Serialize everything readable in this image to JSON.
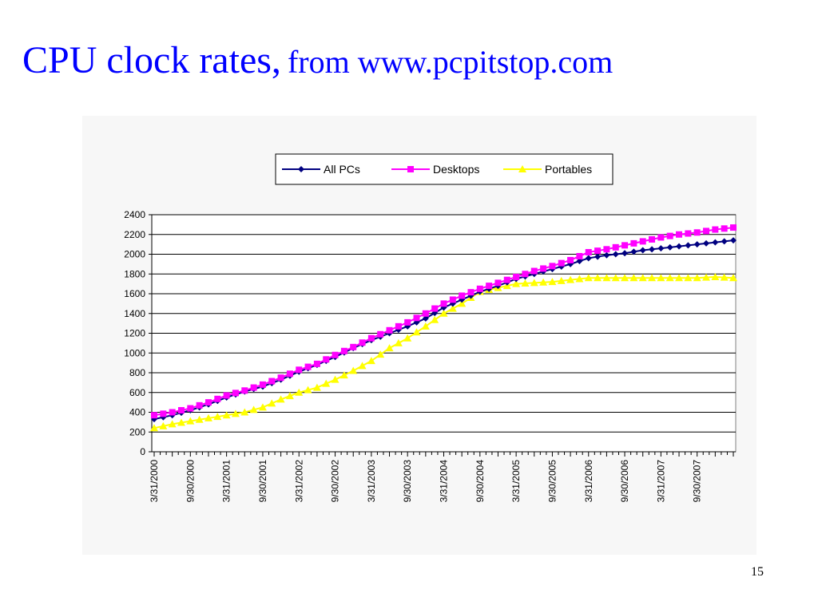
{
  "slide": {
    "title_main": "CPU clock rates,",
    "title_source": "from www.pcpitstop.com",
    "page_number": "15"
  },
  "chart_data": {
    "type": "line",
    "title": "",
    "xlabel": "",
    "ylabel": "",
    "ylim": [
      0,
      2400
    ],
    "yticks": [
      0,
      200,
      400,
      600,
      800,
      1000,
      1200,
      1400,
      1600,
      1800,
      2000,
      2200,
      2400
    ],
    "x_tick_labels": [
      "3/31/2000",
      "9/30/2000",
      "3/31/2001",
      "9/30/2001",
      "3/31/2002",
      "9/30/2002",
      "3/31/2003",
      "9/30/2003",
      "3/31/2004",
      "9/30/2004",
      "3/31/2005",
      "9/30/2005",
      "3/31/2006",
      "9/30/2006",
      "3/31/2007",
      "9/30/2007"
    ],
    "grid": "horizontal",
    "legend_position": "top-center",
    "x": [
      "3/31/2000",
      "6/30/2000",
      "9/30/2000",
      "12/31/2000",
      "3/31/2001",
      "6/30/2001",
      "9/30/2001",
      "12/31/2001",
      "3/31/2002",
      "6/30/2002",
      "9/30/2002",
      "12/31/2002",
      "3/31/2003",
      "6/30/2003",
      "9/30/2003",
      "12/31/2003",
      "3/31/2004",
      "6/30/2004",
      "9/30/2004",
      "12/31/2004",
      "3/31/2005",
      "6/30/2005",
      "9/30/2005",
      "12/31/2005",
      "3/31/2006",
      "6/30/2006",
      "9/30/2006",
      "12/31/2006",
      "3/31/2007",
      "6/30/2007",
      "9/30/2007",
      "12/31/2007",
      "3/31/2008"
    ],
    "series": [
      {
        "name": "All PCs",
        "color": "#000080",
        "marker": "diamond",
        "values": [
          330,
          370,
          420,
          480,
          550,
          610,
          660,
          730,
          810,
          880,
          960,
          1050,
          1130,
          1200,
          1270,
          1350,
          1460,
          1540,
          1620,
          1680,
          1750,
          1800,
          1850,
          1900,
          1960,
          1990,
          2010,
          2040,
          2060,
          2080,
          2100,
          2120,
          2140
        ]
      },
      {
        "name": "Desktops",
        "color": "#ff00ff",
        "marker": "square",
        "values": [
          370,
          400,
          440,
          500,
          570,
          620,
          680,
          750,
          830,
          890,
          980,
          1060,
          1150,
          1230,
          1310,
          1400,
          1500,
          1580,
          1650,
          1710,
          1770,
          1830,
          1880,
          1940,
          2020,
          2050,
          2090,
          2130,
          2170,
          2200,
          2220,
          2250,
          2270
        ]
      },
      {
        "name": "Portables",
        "color": "#ffff00",
        "marker": "triangle",
        "values": [
          240,
          280,
          310,
          340,
          370,
          400,
          450,
          530,
          600,
          650,
          730,
          820,
          920,
          1050,
          1150,
          1270,
          1400,
          1500,
          1620,
          1660,
          1700,
          1710,
          1720,
          1740,
          1760,
          1760,
          1760,
          1760,
          1760,
          1760,
          1760,
          1770,
          1760
        ]
      }
    ]
  }
}
